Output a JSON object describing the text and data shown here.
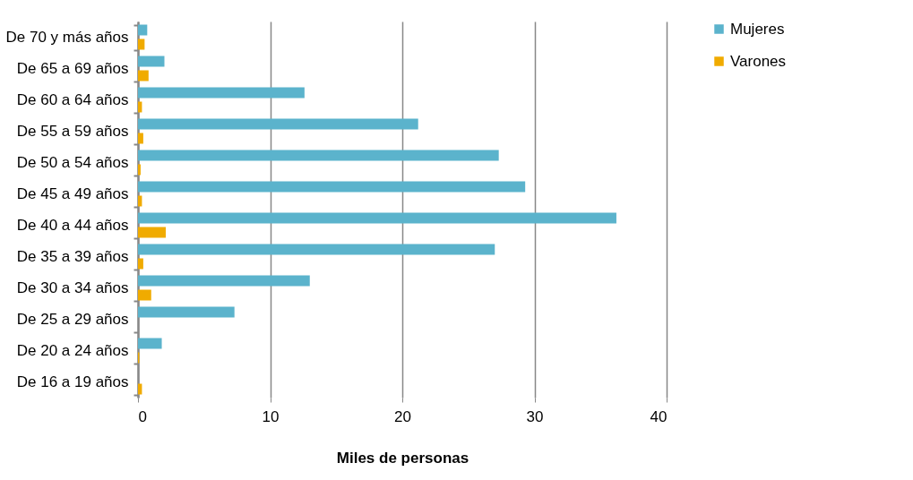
{
  "chart_data": {
    "type": "bar",
    "orientation": "horizontal",
    "xlabel": "Miles de personas",
    "categories": [
      "De 70 y más años",
      "De 65 a 69 años",
      "De 60 a 64 años",
      "De 55 a 59 años",
      "De 50 a 54 años",
      "De 45 a 49 años",
      "De 40 a 44 años",
      "De 35 a 39 años",
      "De 30 a 34 años",
      "De 25 a 29 años",
      "De 20 a 24 años",
      "De 16 a 19 años"
    ],
    "series": [
      {
        "name": "Mujeres",
        "color": "#5bb3cc",
        "values": [
          0.7,
          2.0,
          12.6,
          21.2,
          27.3,
          29.3,
          36.2,
          27.0,
          13.0,
          7.3,
          1.8,
          0
        ]
      },
      {
        "name": "Varones",
        "color": "#f0ab00",
        "values": [
          0.5,
          0.8,
          0.3,
          0.4,
          0.2,
          0.3,
          2.1,
          0.4,
          1.0,
          0,
          0.1,
          0.3
        ]
      }
    ],
    "xlim": [
      0,
      40
    ],
    "xticks": [
      0,
      10,
      20,
      30,
      40
    ],
    "grid": "x",
    "legend": "right"
  }
}
